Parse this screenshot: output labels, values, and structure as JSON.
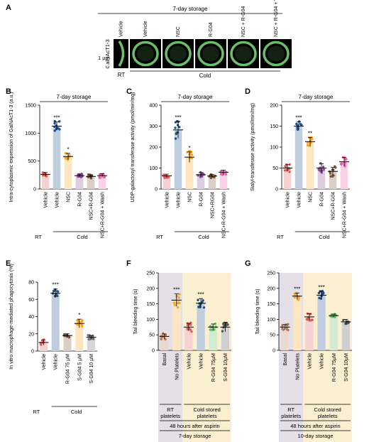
{
  "chart_data": [
    {
      "panel": "A",
      "type": "image-strip",
      "title": "7-day storage",
      "ylabel": "GalNAcT1-3",
      "scale_label": "1 µm",
      "images": [
        "Vehicle",
        "Vehicle",
        "NSC",
        "R-G04",
        "NSC + R-G04",
        "NSC + R-G04 + Wash"
      ],
      "groups": [
        {
          "label": "RT"
        },
        {
          "label": "Cold"
        }
      ],
      "image_color": "#7ee07a"
    },
    {
      "panel": "B",
      "type": "bar",
      "title": "7-day storage",
      "ylabel": "Intra-cytoplasmic expression of GalNAcT1-3 (a.u.)",
      "ylim": [
        0,
        1600
      ],
      "yticks": [
        "0",
        "500",
        "1000",
        "1500"
      ],
      "categories": [
        "Vehicle",
        "Vehicle",
        "NSC",
        "R-G04",
        "NSC+R-G04",
        "NSC+R-G04 + Wash"
      ],
      "values": [
        280,
        1200,
        620,
        255,
        240,
        255
      ],
      "errors": [
        35,
        80,
        60,
        30,
        30,
        35
      ],
      "colors": [
        "#e05a5a",
        "#1f4e8c",
        "#f7a51f",
        "#8b4a9a",
        "#7a5238",
        "#ee5aa8"
      ],
      "stars": [
        "",
        "***",
        "*",
        "",
        "",
        ""
      ],
      "groups": [
        {
          "label": "RT"
        },
        {
          "label": "Cold"
        }
      ]
    },
    {
      "panel": "C",
      "type": "bar",
      "title": "7-day storage",
      "ylabel": "UDP-galactosyl transferase activity (pmol/min/mg)",
      "ylim": [
        0,
        400
      ],
      "yticks": [
        "0",
        "100",
        "200",
        "300",
        "400"
      ],
      "categories": [
        "Vehicle",
        "Vehicle",
        "NSC",
        "R-G04",
        "NSC+RG04",
        "NSC+R-G04 + Wash"
      ],
      "values": [
        63,
        282,
        152,
        68,
        62,
        80
      ],
      "errors": [
        8,
        40,
        25,
        10,
        8,
        10
      ],
      "colors": [
        "#e05a5a",
        "#1f4e8c",
        "#f7a51f",
        "#8b4a9a",
        "#7a5238",
        "#ee5aa8"
      ],
      "stars": [
        "",
        "***",
        "*",
        "",
        "",
        ""
      ],
      "groups": [
        {
          "label": "RT"
        },
        {
          "label": "Cold"
        }
      ]
    },
    {
      "panel": "D",
      "type": "bar",
      "title": "7-day storage",
      "ylabel": "Sialyl-transferase activity (pmol/min/mg)",
      "ylim": [
        0,
        200
      ],
      "yticks": [
        "0",
        "50",
        "100",
        "150",
        "200"
      ],
      "categories": [
        "Vehicle",
        "Vehicle",
        "NSC",
        "R-G04",
        "NSC+R-G04",
        "NSC+R-G04 + Wash"
      ],
      "values": [
        50,
        150,
        113,
        50,
        42,
        65
      ],
      "errors": [
        8,
        10,
        10,
        10,
        10,
        10
      ],
      "colors": [
        "#e05a5a",
        "#1f4e8c",
        "#f7a51f",
        "#8b4a9a",
        "#7a5238",
        "#ee5aa8"
      ],
      "stars": [
        "",
        "***",
        "**",
        "",
        "",
        ""
      ],
      "groups": [
        {
          "label": "RT"
        },
        {
          "label": "Cold"
        }
      ]
    },
    {
      "panel": "E",
      "type": "bar",
      "title": "",
      "ylabel": "In vitro macrophage-mediated phagocytosis (%)",
      "ylim": [
        0,
        80
      ],
      "yticks": [
        "0",
        "20",
        "40",
        "60",
        "80"
      ],
      "categories": [
        "Vehicle",
        "Vehicle",
        "R-G04 75 µM",
        "S-G04 5 µM",
        "S-G04 10 µM"
      ],
      "values": [
        10,
        67,
        18,
        32,
        16
      ],
      "errors": [
        3,
        5,
        2,
        5,
        2
      ],
      "colors": [
        "#e05a5a",
        "#1f4e8c",
        "#7a5238",
        "#f7a51f",
        "#6b6b6b"
      ],
      "stars": [
        "",
        "***",
        "",
        "*",
        ""
      ],
      "groups": [
        {
          "label": "RT"
        },
        {
          "label": "Cold"
        }
      ]
    },
    {
      "panel": "F",
      "type": "bar",
      "title": "",
      "ylabel": "Tail bleeding time (s)",
      "ylim": [
        0,
        250
      ],
      "yticks": [
        "0",
        "50",
        "100",
        "150",
        "200",
        "250"
      ],
      "categories": [
        "Basal",
        "No Platelets",
        "Vehicle",
        "Vehicle",
        "R-G04 75µM",
        "S-G04 10µM"
      ],
      "values": [
        45,
        162,
        75,
        152,
        75,
        75
      ],
      "errors": [
        8,
        20,
        12,
        15,
        10,
        15
      ],
      "colors": [
        "#b07a5a",
        "#f7a51f",
        "#e05a5a",
        "#1f4e8c",
        "#5bbf5b",
        "#555555"
      ],
      "stars": [
        "",
        "***",
        "",
        "***",
        "",
        ""
      ],
      "shading": [
        "#e5e0e8",
        "#fbefd2"
      ],
      "groups": [
        {
          "label": "RT platelets"
        },
        {
          "label": "Cold stored platelets"
        }
      ],
      "footer": [
        "48 hours after aspirin",
        "7-day storage"
      ]
    },
    {
      "panel": "G",
      "type": "bar",
      "title": "",
      "ylabel": "Tail bleeding time (s)",
      "ylim": [
        0,
        250
      ],
      "yticks": [
        "0",
        "50",
        "100",
        "150",
        "200",
        "250"
      ],
      "categories": [
        "Basal",
        "No Platelets",
        "Vehicle",
        "Vehicle",
        "R-G04 75µM",
        "S-G04 10µM"
      ],
      "values": [
        75,
        175,
        108,
        178,
        112,
        92
      ],
      "errors": [
        8,
        10,
        10,
        12,
        5,
        8
      ],
      "colors": [
        "#b07a5a",
        "#f7a51f",
        "#e05a5a",
        "#1f4e8c",
        "#5bbf5b",
        "#555555"
      ],
      "stars": [
        "",
        "***",
        "",
        "***",
        "",
        ""
      ],
      "shading": [
        "#e5e0e8",
        "#fbefd2"
      ],
      "groups": [
        {
          "label": "RT platelets"
        },
        {
          "label": "Cold stored platelets"
        }
      ],
      "footer": [
        "48 hours after aspirin",
        "10-day storage"
      ]
    }
  ]
}
